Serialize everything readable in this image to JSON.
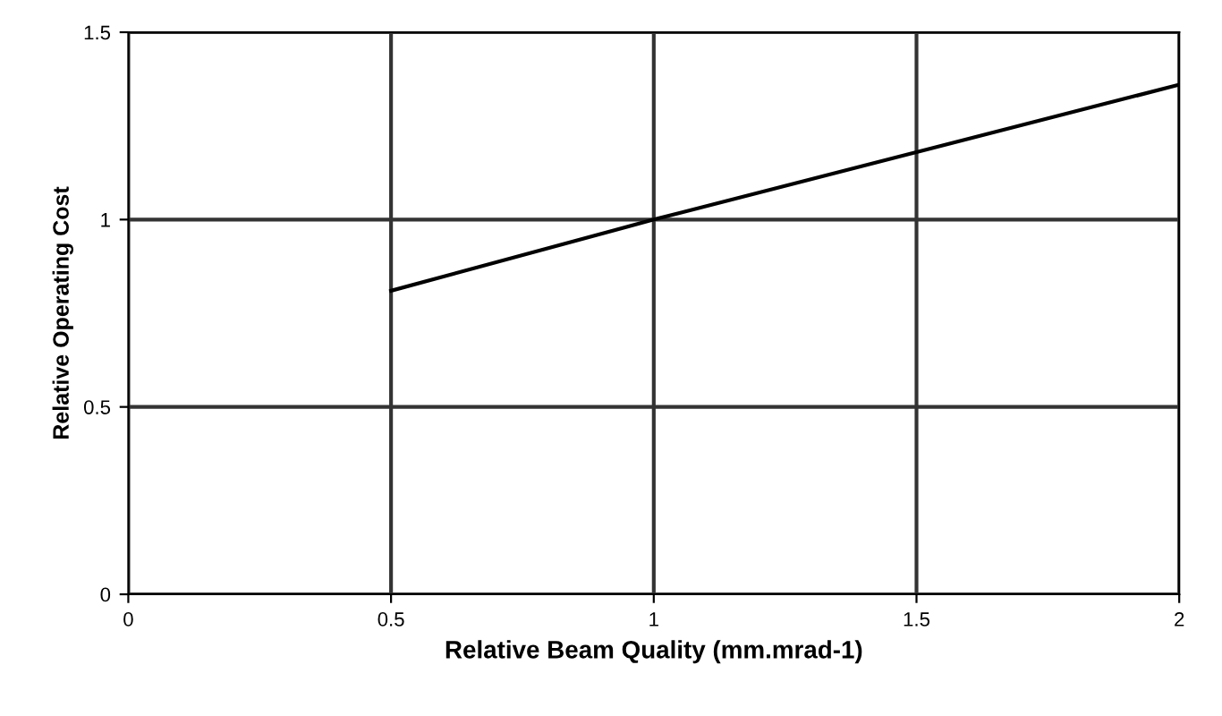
{
  "chart_data": {
    "type": "line",
    "xlabel": "Relative Beam Quality (mm.mrad-1)",
    "ylabel": "Relative Operating Cost",
    "x": [
      0.5,
      1,
      1.5,
      2
    ],
    "series": [
      {
        "color": "#000000",
        "values": [
          0.81,
          1.0,
          1.18,
          1.36
        ]
      }
    ],
    "xlim": [
      0,
      2
    ],
    "xticks": [
      0,
      0.5,
      1,
      1.5,
      2
    ],
    "ylim": [
      0,
      1.5
    ],
    "yticks": [
      0,
      0.5,
      1,
      1.5
    ],
    "grid": true,
    "marker": "none",
    "line_style": "solid"
  }
}
